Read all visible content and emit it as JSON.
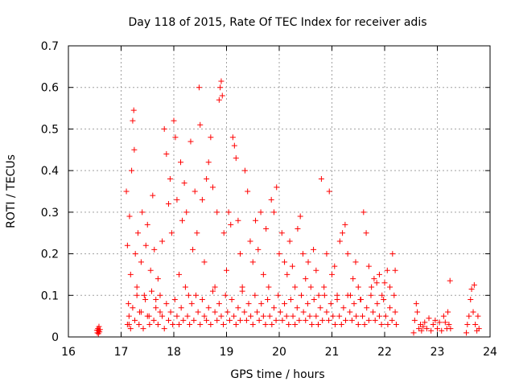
{
  "chart_data": {
    "type": "scatter",
    "title": "Day 118 of 2015, Rate Of TEC Index for receiver adis",
    "xlabel": "GPS time / hours",
    "ylabel": "ROTI / TECUs",
    "xlim": [
      16,
      24
    ],
    "ylim": [
      0,
      0.7
    ],
    "xticks": [
      "16",
      "17",
      "18",
      "19",
      "20",
      "21",
      "22",
      "23",
      "24"
    ],
    "yticks": [
      "0",
      "0.1",
      "0.2",
      "0.3",
      "0.4",
      "0.5",
      "0.6",
      "0.7"
    ],
    "grid": true,
    "marker": "+",
    "color": "#ff0000",
    "series": [
      {
        "points": [
          [
            16.55,
            0.01
          ],
          [
            16.56,
            0.02
          ],
          [
            16.57,
            0.015
          ],
          [
            16.58,
            0.025
          ],
          [
            16.59,
            0.012
          ],
          [
            16.6,
            0.018
          ],
          [
            16.57,
            0.008
          ],
          [
            16.54,
            0.016
          ],
          [
            17.1,
            0.35
          ],
          [
            17.12,
            0.22
          ],
          [
            17.14,
            0.08
          ],
          [
            17.15,
            0.03
          ],
          [
            17.16,
            0.29
          ],
          [
            17.18,
            0.15
          ],
          [
            17.2,
            0.4
          ],
          [
            17.22,
            0.52
          ],
          [
            17.24,
            0.545
          ],
          [
            17.25,
            0.45
          ],
          [
            17.27,
            0.2
          ],
          [
            17.3,
            0.12
          ],
          [
            17.32,
            0.25
          ],
          [
            17.35,
            0.06
          ],
          [
            17.38,
            0.18
          ],
          [
            17.4,
            0.3
          ],
          [
            17.44,
            0.1
          ],
          [
            17.47,
            0.22
          ],
          [
            17.5,
            0.27
          ],
          [
            17.53,
            0.05
          ],
          [
            17.56,
            0.16
          ],
          [
            17.6,
            0.34
          ],
          [
            17.63,
            0.21
          ],
          [
            17.66,
            0.09
          ],
          [
            17.7,
            0.14
          ],
          [
            17.74,
            0.06
          ],
          [
            17.78,
            0.23
          ],
          [
            17.82,
            0.5
          ],
          [
            17.86,
            0.44
          ],
          [
            17.9,
            0.32
          ],
          [
            17.93,
            0.38
          ],
          [
            17.96,
            0.25
          ],
          [
            18.0,
            0.52
          ],
          [
            18.03,
            0.48
          ],
          [
            18.06,
            0.33
          ],
          [
            18.1,
            0.15
          ],
          [
            18.13,
            0.42
          ],
          [
            18.16,
            0.28
          ],
          [
            18.2,
            0.37
          ],
          [
            18.24,
            0.3
          ],
          [
            18.28,
            0.1
          ],
          [
            18.32,
            0.47
          ],
          [
            18.36,
            0.21
          ],
          [
            18.4,
            0.35
          ],
          [
            18.44,
            0.25
          ],
          [
            18.48,
            0.6
          ],
          [
            18.5,
            0.51
          ],
          [
            18.54,
            0.33
          ],
          [
            18.58,
            0.18
          ],
          [
            18.62,
            0.38
          ],
          [
            18.66,
            0.42
          ],
          [
            18.7,
            0.48
          ],
          [
            18.74,
            0.36
          ],
          [
            18.78,
            0.12
          ],
          [
            18.82,
            0.3
          ],
          [
            18.86,
            0.57
          ],
          [
            18.88,
            0.6
          ],
          [
            18.9,
            0.615
          ],
          [
            18.92,
            0.58
          ],
          [
            18.95,
            0.25
          ],
          [
            19.0,
            0.16
          ],
          [
            19.04,
            0.3
          ],
          [
            19.08,
            0.27
          ],
          [
            19.12,
            0.48
          ],
          [
            19.15,
            0.46
          ],
          [
            19.18,
            0.43
          ],
          [
            19.22,
            0.28
          ],
          [
            19.26,
            0.2
          ],
          [
            19.3,
            0.12
          ],
          [
            19.35,
            0.4
          ],
          [
            19.4,
            0.35
          ],
          [
            19.45,
            0.23
          ],
          [
            19.5,
            0.18
          ],
          [
            19.55,
            0.28
          ],
          [
            19.6,
            0.21
          ],
          [
            19.65,
            0.3
          ],
          [
            19.7,
            0.15
          ],
          [
            19.75,
            0.26
          ],
          [
            19.8,
            0.12
          ],
          [
            19.85,
            0.33
          ],
          [
            19.9,
            0.3
          ],
          [
            19.95,
            0.36
          ],
          [
            20.0,
            0.2
          ],
          [
            20.05,
            0.25
          ],
          [
            20.1,
            0.18
          ],
          [
            20.15,
            0.15
          ],
          [
            20.2,
            0.23
          ],
          [
            20.25,
            0.17
          ],
          [
            20.3,
            0.12
          ],
          [
            20.35,
            0.26
          ],
          [
            20.4,
            0.29
          ],
          [
            20.45,
            0.2
          ],
          [
            20.5,
            0.14
          ],
          [
            20.55,
            0.18
          ],
          [
            20.6,
            0.12
          ],
          [
            20.65,
            0.21
          ],
          [
            20.7,
            0.16
          ],
          [
            20.75,
            0.1
          ],
          [
            20.8,
            0.38
          ],
          [
            20.85,
            0.12
          ],
          [
            20.9,
            0.2
          ],
          [
            20.95,
            0.35
          ],
          [
            21.0,
            0.15
          ],
          [
            21.05,
            0.17
          ],
          [
            21.1,
            0.1
          ],
          [
            21.15,
            0.23
          ],
          [
            21.2,
            0.25
          ],
          [
            21.25,
            0.27
          ],
          [
            21.3,
            0.2
          ],
          [
            21.35,
            0.1
          ],
          [
            21.4,
            0.14
          ],
          [
            21.45,
            0.18
          ],
          [
            21.5,
            0.12
          ],
          [
            21.55,
            0.09
          ],
          [
            21.6,
            0.3
          ],
          [
            21.65,
            0.25
          ],
          [
            21.7,
            0.17
          ],
          [
            21.75,
            0.12
          ],
          [
            21.8,
            0.14
          ],
          [
            21.85,
            0.13
          ],
          [
            21.9,
            0.15
          ],
          [
            21.95,
            0.1
          ],
          [
            22.0,
            0.13
          ],
          [
            22.05,
            0.16
          ],
          [
            22.1,
            0.12
          ],
          [
            22.15,
            0.2
          ],
          [
            22.2,
            0.16
          ],
          [
            17.12,
            0.03
          ],
          [
            17.15,
            0.05
          ],
          [
            17.18,
            0.02
          ],
          [
            17.22,
            0.07
          ],
          [
            17.26,
            0.04
          ],
          [
            17.3,
            0.1
          ],
          [
            17.34,
            0.03
          ],
          [
            17.38,
            0.06
          ],
          [
            17.42,
            0.02
          ],
          [
            17.46,
            0.09
          ],
          [
            17.5,
            0.05
          ],
          [
            17.54,
            0.03
          ],
          [
            17.58,
            0.11
          ],
          [
            17.62,
            0.04
          ],
          [
            17.66,
            0.07
          ],
          [
            17.7,
            0.03
          ],
          [
            17.74,
            0.1
          ],
          [
            17.78,
            0.05
          ],
          [
            17.82,
            0.02
          ],
          [
            17.86,
            0.08
          ],
          [
            17.9,
            0.04
          ],
          [
            17.94,
            0.06
          ],
          [
            17.98,
            0.03
          ],
          [
            18.02,
            0.09
          ],
          [
            18.06,
            0.05
          ],
          [
            18.1,
            0.03
          ],
          [
            18.14,
            0.07
          ],
          [
            18.18,
            0.04
          ],
          [
            18.22,
            0.12
          ],
          [
            18.26,
            0.05
          ],
          [
            18.3,
            0.03
          ],
          [
            18.34,
            0.08
          ],
          [
            18.38,
            0.04
          ],
          [
            18.42,
            0.1
          ],
          [
            18.46,
            0.06
          ],
          [
            18.5,
            0.03
          ],
          [
            18.54,
            0.09
          ],
          [
            18.58,
            0.05
          ],
          [
            18.62,
            0.04
          ],
          [
            18.66,
            0.07
          ],
          [
            18.7,
            0.03
          ],
          [
            18.74,
            0.11
          ],
          [
            18.78,
            0.06
          ],
          [
            18.82,
            0.04
          ],
          [
            18.86,
            0.08
          ],
          [
            18.9,
            0.05
          ],
          [
            18.94,
            0.03
          ],
          [
            18.98,
            0.1
          ],
          [
            19.02,
            0.06
          ],
          [
            19.06,
            0.04
          ],
          [
            19.1,
            0.09
          ],
          [
            19.14,
            0.05
          ],
          [
            19.18,
            0.03
          ],
          [
            19.22,
            0.07
          ],
          [
            19.26,
            0.04
          ],
          [
            19.3,
            0.11
          ],
          [
            19.34,
            0.06
          ],
          [
            19.38,
            0.04
          ],
          [
            19.42,
            0.08
          ],
          [
            19.46,
            0.05
          ],
          [
            19.5,
            0.03
          ],
          [
            19.54,
            0.1
          ],
          [
            19.58,
            0.06
          ],
          [
            19.62,
            0.04
          ],
          [
            19.66,
            0.08
          ],
          [
            19.7,
            0.05
          ],
          [
            19.74,
            0.03
          ],
          [
            19.78,
            0.09
          ],
          [
            19.82,
            0.05
          ],
          [
            19.86,
            0.03
          ],
          [
            19.9,
            0.07
          ],
          [
            19.94,
            0.04
          ],
          [
            19.98,
            0.1
          ],
          [
            20.02,
            0.06
          ],
          [
            20.06,
            0.04
          ],
          [
            20.1,
            0.08
          ],
          [
            20.14,
            0.05
          ],
          [
            20.18,
            0.03
          ],
          [
            20.22,
            0.09
          ],
          [
            20.26,
            0.05
          ],
          [
            20.3,
            0.03
          ],
          [
            20.34,
            0.07
          ],
          [
            20.38,
            0.04
          ],
          [
            20.42,
            0.1
          ],
          [
            20.46,
            0.06
          ],
          [
            20.5,
            0.04
          ],
          [
            20.54,
            0.08
          ],
          [
            20.58,
            0.05
          ],
          [
            20.62,
            0.03
          ],
          [
            20.66,
            0.09
          ],
          [
            20.7,
            0.05
          ],
          [
            20.74,
            0.03
          ],
          [
            20.78,
            0.07
          ],
          [
            20.82,
            0.04
          ],
          [
            20.86,
            0.1
          ],
          [
            20.9,
            0.06
          ],
          [
            20.94,
            0.04
          ],
          [
            20.98,
            0.08
          ],
          [
            21.02,
            0.05
          ],
          [
            21.06,
            0.03
          ],
          [
            21.1,
            0.09
          ],
          [
            21.14,
            0.05
          ],
          [
            21.18,
            0.03
          ],
          [
            21.22,
            0.07
          ],
          [
            21.26,
            0.04
          ],
          [
            21.3,
            0.1
          ],
          [
            21.34,
            0.06
          ],
          [
            21.38,
            0.04
          ],
          [
            21.42,
            0.08
          ],
          [
            21.46,
            0.05
          ],
          [
            21.5,
            0.03
          ],
          [
            21.54,
            0.09
          ],
          [
            21.58,
            0.05
          ],
          [
            21.62,
            0.03
          ],
          [
            21.66,
            0.07
          ],
          [
            21.7,
            0.04
          ],
          [
            21.74,
            0.1
          ],
          [
            21.78,
            0.06
          ],
          [
            21.82,
            0.04
          ],
          [
            21.86,
            0.08
          ],
          [
            21.9,
            0.05
          ],
          [
            21.94,
            0.03
          ],
          [
            21.98,
            0.09
          ],
          [
            22.02,
            0.05
          ],
          [
            22.06,
            0.03
          ],
          [
            22.1,
            0.07
          ],
          [
            22.14,
            0.04
          ],
          [
            22.18,
            0.1
          ],
          [
            22.2,
            0.06
          ],
          [
            22.22,
            0.03
          ],
          [
            22.55,
            0.01
          ],
          [
            22.57,
            0.04
          ],
          [
            22.6,
            0.08
          ],
          [
            22.62,
            0.06
          ],
          [
            22.65,
            0.02
          ],
          [
            22.68,
            0.03
          ],
          [
            22.7,
            0.015
          ],
          [
            22.73,
            0.025
          ],
          [
            22.76,
            0.035
          ],
          [
            22.8,
            0.02
          ],
          [
            22.84,
            0.045
          ],
          [
            22.88,
            0.015
          ],
          [
            22.92,
            0.03
          ],
          [
            22.96,
            0.04
          ],
          [
            23.0,
            0.02
          ],
          [
            23.04,
            0.035
          ],
          [
            23.08,
            0.015
          ],
          [
            23.12,
            0.05
          ],
          [
            23.15,
            0.035
          ],
          [
            23.18,
            0.02
          ],
          [
            23.2,
            0.06
          ],
          [
            23.22,
            0.03
          ],
          [
            23.24,
            0.135
          ],
          [
            23.25,
            0.02
          ],
          [
            23.55,
            0.01
          ],
          [
            23.57,
            0.03
          ],
          [
            23.6,
            0.05
          ],
          [
            23.63,
            0.09
          ],
          [
            23.65,
            0.115
          ],
          [
            23.68,
            0.06
          ],
          [
            23.7,
            0.125
          ],
          [
            23.72,
            0.03
          ],
          [
            23.75,
            0.015
          ],
          [
            23.77,
            0.05
          ],
          [
            23.79,
            0.02
          ]
        ]
      }
    ]
  }
}
